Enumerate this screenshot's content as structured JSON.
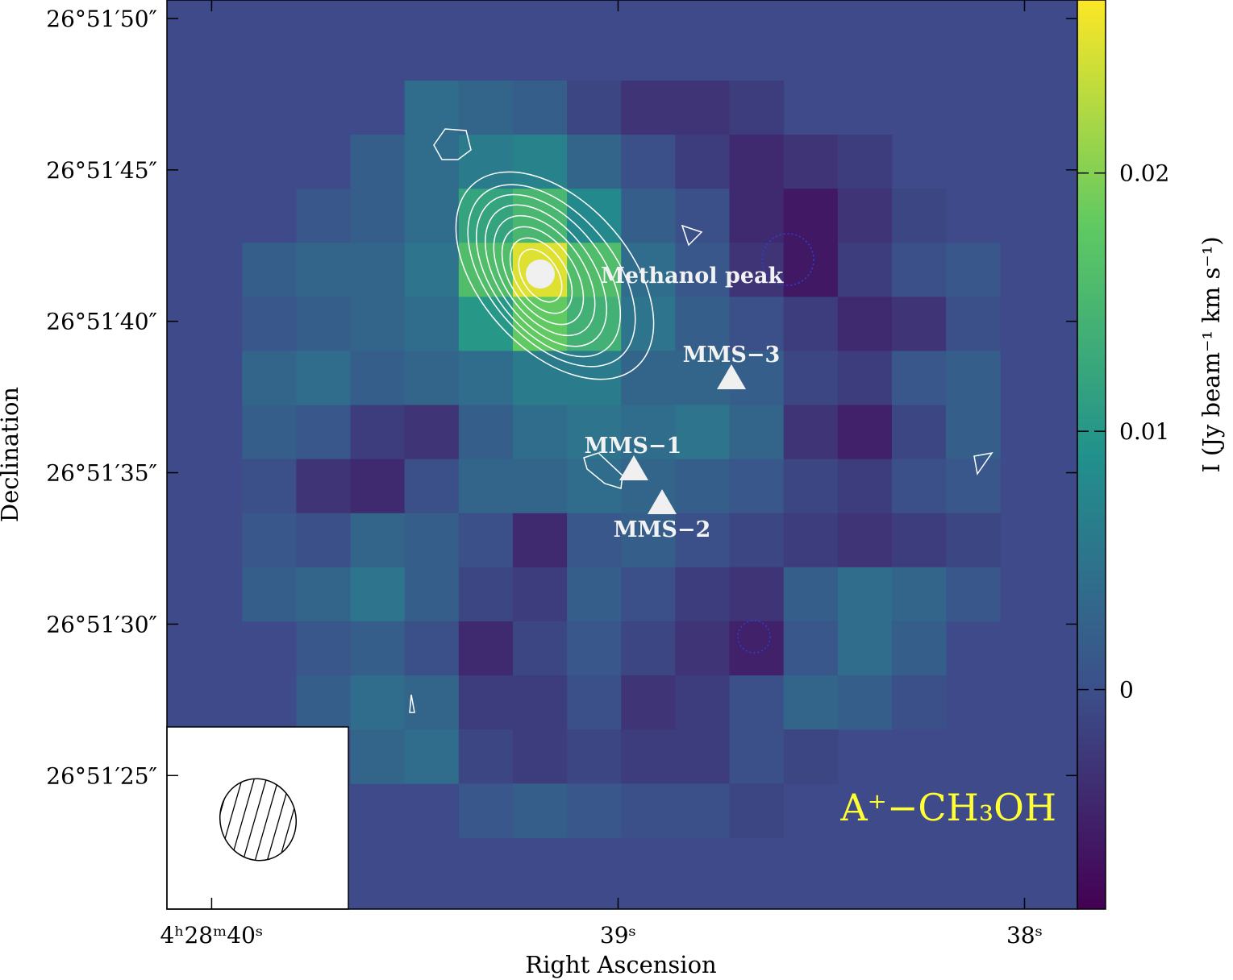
{
  "chart_data": {
    "type": "heatmap",
    "x_label": "Right Ascension",
    "y_label": "Declination",
    "colorbar_label": "I (Jy beam⁻¹ km s⁻¹)",
    "annotation": "A⁺−CH₃OH",
    "markers": [
      "Methanol peak",
      "MMS−3",
      "MMS−1",
      "MMS−2"
    ],
    "xlim": [
      40.11,
      37.87
    ],
    "ylim": [
      20.59,
      50.61
    ],
    "xticks": [
      {
        "value": 40,
        "label": "4ʰ28ᵐ40ˢ"
      },
      {
        "value": 39,
        "label": "39ˢ"
      },
      {
        "value": 38,
        "label": "38ˢ"
      }
    ],
    "yticks": [
      {
        "value": 50,
        "label": "26°51′50″"
      },
      {
        "value": 45,
        "label": "26°51′45″"
      },
      {
        "value": 40,
        "label": "26°51′40″"
      },
      {
        "value": 35,
        "label": "26°51′35″"
      },
      {
        "value": 30,
        "label": "26°51′30″"
      },
      {
        "value": 25,
        "label": "26°51′25″"
      }
    ],
    "clim": [
      -0.0085,
      0.0267
    ],
    "cticks": [
      0,
      0.01,
      0.02
    ],
    "colormap": "viridis",
    "extent": [
      39.925,
      38.06,
      22.95,
      47.95
    ],
    "z": [
      [
        null,
        null,
        null,
        0.004,
        0.003,
        0.002,
        -0.001,
        -0.003,
        -0.003,
        -0.002,
        null,
        null,
        null,
        null
      ],
      [
        null,
        null,
        0.002,
        0.004,
        0.006,
        0.007,
        0.003,
        0.0,
        -0.002,
        -0.004,
        -0.003,
        -0.002,
        null,
        null
      ],
      [
        null,
        0.001,
        0.002,
        0.004,
        0.012,
        0.015,
        0.008,
        0.002,
        0.0,
        -0.004,
        -0.006,
        -0.003,
        -0.001,
        null
      ],
      [
        0.002,
        0.003,
        0.003,
        0.005,
        0.016,
        0.025,
        0.016,
        0.004,
        0.001,
        -0.003,
        -0.006,
        -0.002,
        0.0,
        0.001
      ],
      [
        0.001,
        0.002,
        0.003,
        0.004,
        0.01,
        0.018,
        0.014,
        0.005,
        0.002,
        0.0,
        -0.002,
        -0.004,
        -0.003,
        0.0
      ],
      [
        0.003,
        0.004,
        0.002,
        0.003,
        0.004,
        0.006,
        0.006,
        0.003,
        0.003,
        0.002,
        -0.001,
        -0.002,
        0.001,
        0.002
      ],
      [
        0.002,
        0.001,
        -0.002,
        -0.003,
        0.002,
        0.004,
        0.005,
        0.004,
        0.005,
        0.003,
        -0.003,
        -0.005,
        -0.001,
        0.002
      ],
      [
        0.0,
        -0.003,
        -0.004,
        0.0,
        0.003,
        0.003,
        0.004,
        0.003,
        0.002,
        0.001,
        -0.001,
        -0.002,
        0.0,
        0.001
      ],
      [
        0.001,
        0.0,
        0.003,
        0.002,
        0.0,
        -0.004,
        0.001,
        0.002,
        0.0,
        -0.001,
        -0.002,
        -0.003,
        -0.002,
        -0.001
      ],
      [
        0.002,
        0.003,
        0.005,
        0.002,
        -0.001,
        -0.002,
        0.002,
        0.0,
        -0.002,
        -0.003,
        0.002,
        0.004,
        0.003,
        0.001
      ],
      [
        null,
        0.001,
        0.002,
        0.0,
        -0.004,
        -0.001,
        0.001,
        -0.001,
        -0.003,
        -0.005,
        0.001,
        0.004,
        0.002,
        null
      ],
      [
        null,
        0.002,
        0.004,
        0.003,
        -0.002,
        -0.002,
        0.0,
        -0.003,
        -0.002,
        0.0,
        0.003,
        0.002,
        0.0,
        null
      ],
      [
        null,
        null,
        0.003,
        0.004,
        -0.001,
        -0.002,
        -0.001,
        -0.002,
        -0.002,
        0.0,
        -0.001,
        null,
        null,
        null
      ],
      [
        null,
        null,
        null,
        null,
        0.001,
        0.002,
        0.001,
        0.0,
        0.0,
        -0.001,
        null,
        null,
        null,
        null
      ]
    ]
  }
}
